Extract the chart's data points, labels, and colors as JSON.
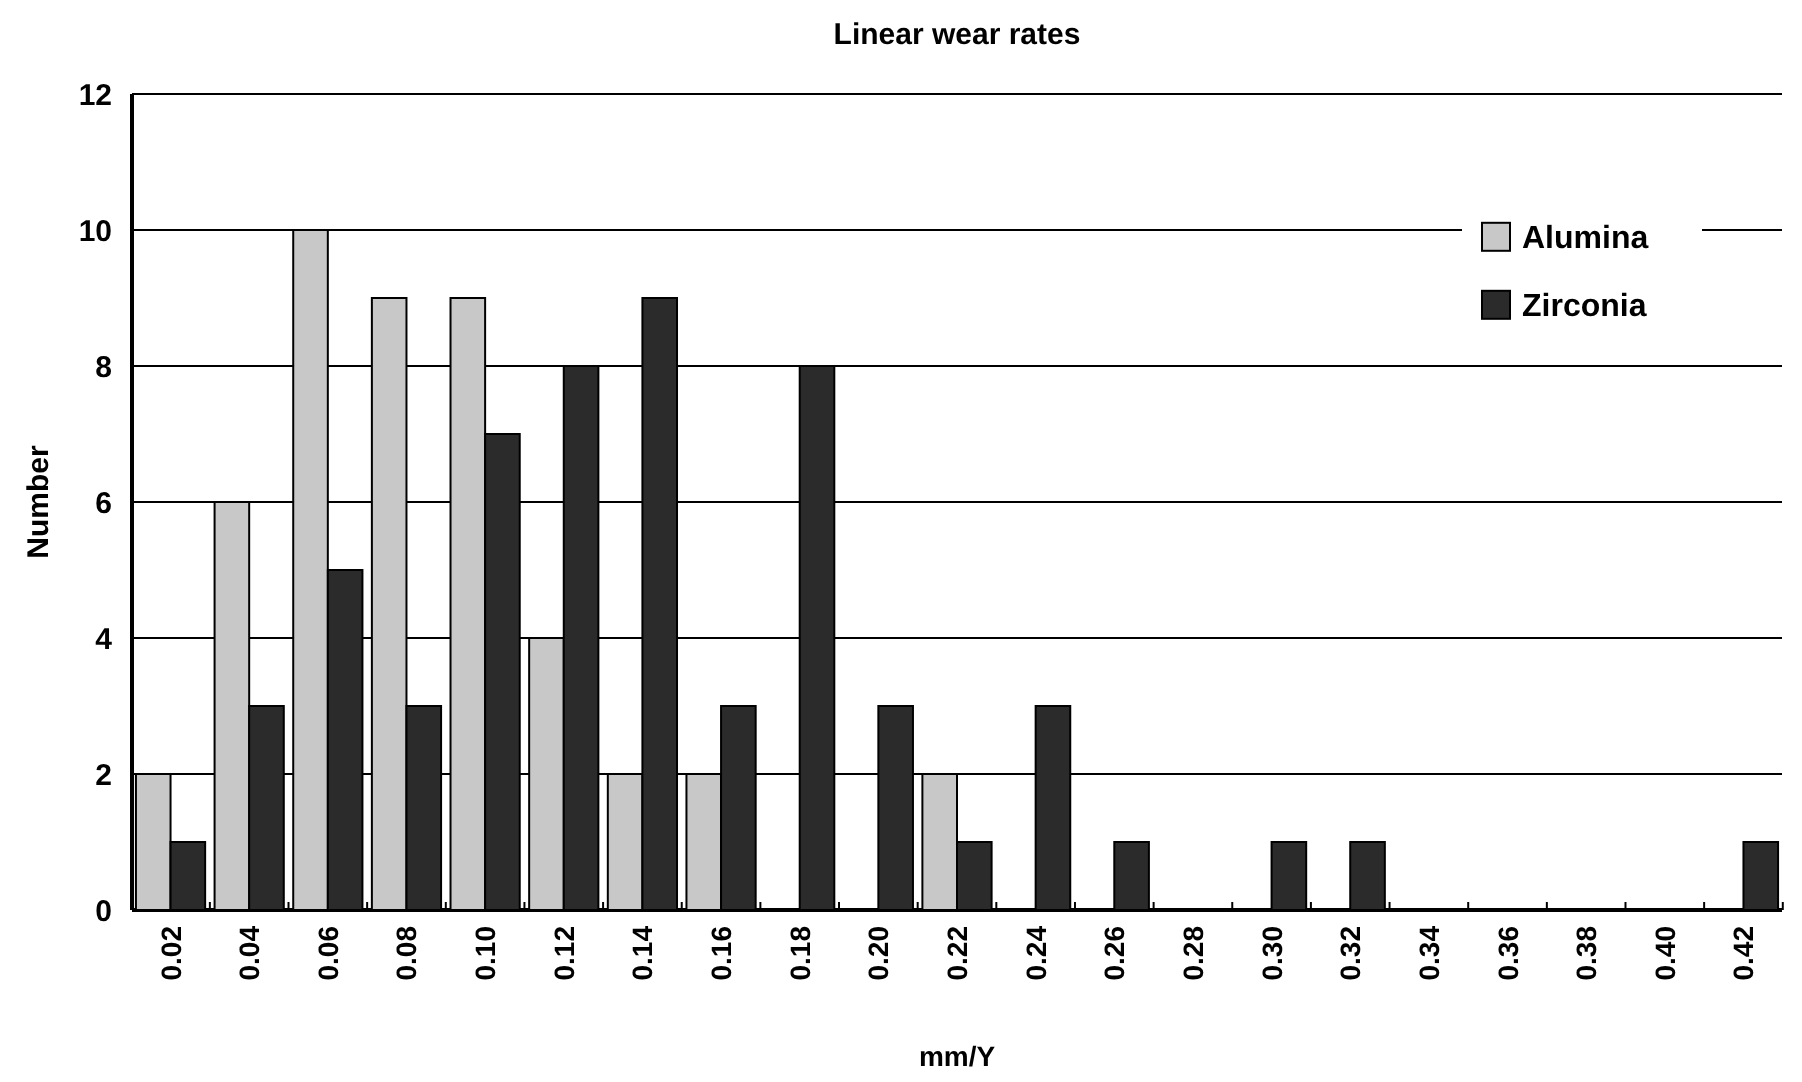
{
  "chart_data": {
    "type": "bar",
    "title": "Linear wear rates",
    "xlabel": "mm/Y",
    "ylabel": "Number",
    "categories": [
      "0.02",
      "0.04",
      "0.06",
      "0.08",
      "0.10",
      "0.12",
      "0.14",
      "0.16",
      "0.18",
      "0.20",
      "0.22",
      "0.24",
      "0.26",
      "0.28",
      "0.30",
      "0.32",
      "0.34",
      "0.36",
      "0.38",
      "0.40",
      "0.42"
    ],
    "series": [
      {
        "name": "Alumina",
        "color": "#c8c8c8",
        "values": [
          2,
          6,
          10,
          9,
          9,
          4,
          2,
          2,
          0,
          0,
          2,
          0,
          0,
          0,
          0,
          0,
          0,
          0,
          0,
          0,
          0
        ]
      },
      {
        "name": "Zirconia",
        "color": "#2b2b2b",
        "values": [
          1,
          3,
          5,
          3,
          7,
          8,
          9,
          3,
          8,
          3,
          1,
          3,
          1,
          0,
          1,
          1,
          0,
          0,
          0,
          0,
          1
        ]
      }
    ],
    "ylim": [
      0,
      12
    ],
    "yticks": [
      0,
      2,
      4,
      6,
      8,
      10,
      12
    ],
    "grid": "y",
    "legend": "top right"
  }
}
